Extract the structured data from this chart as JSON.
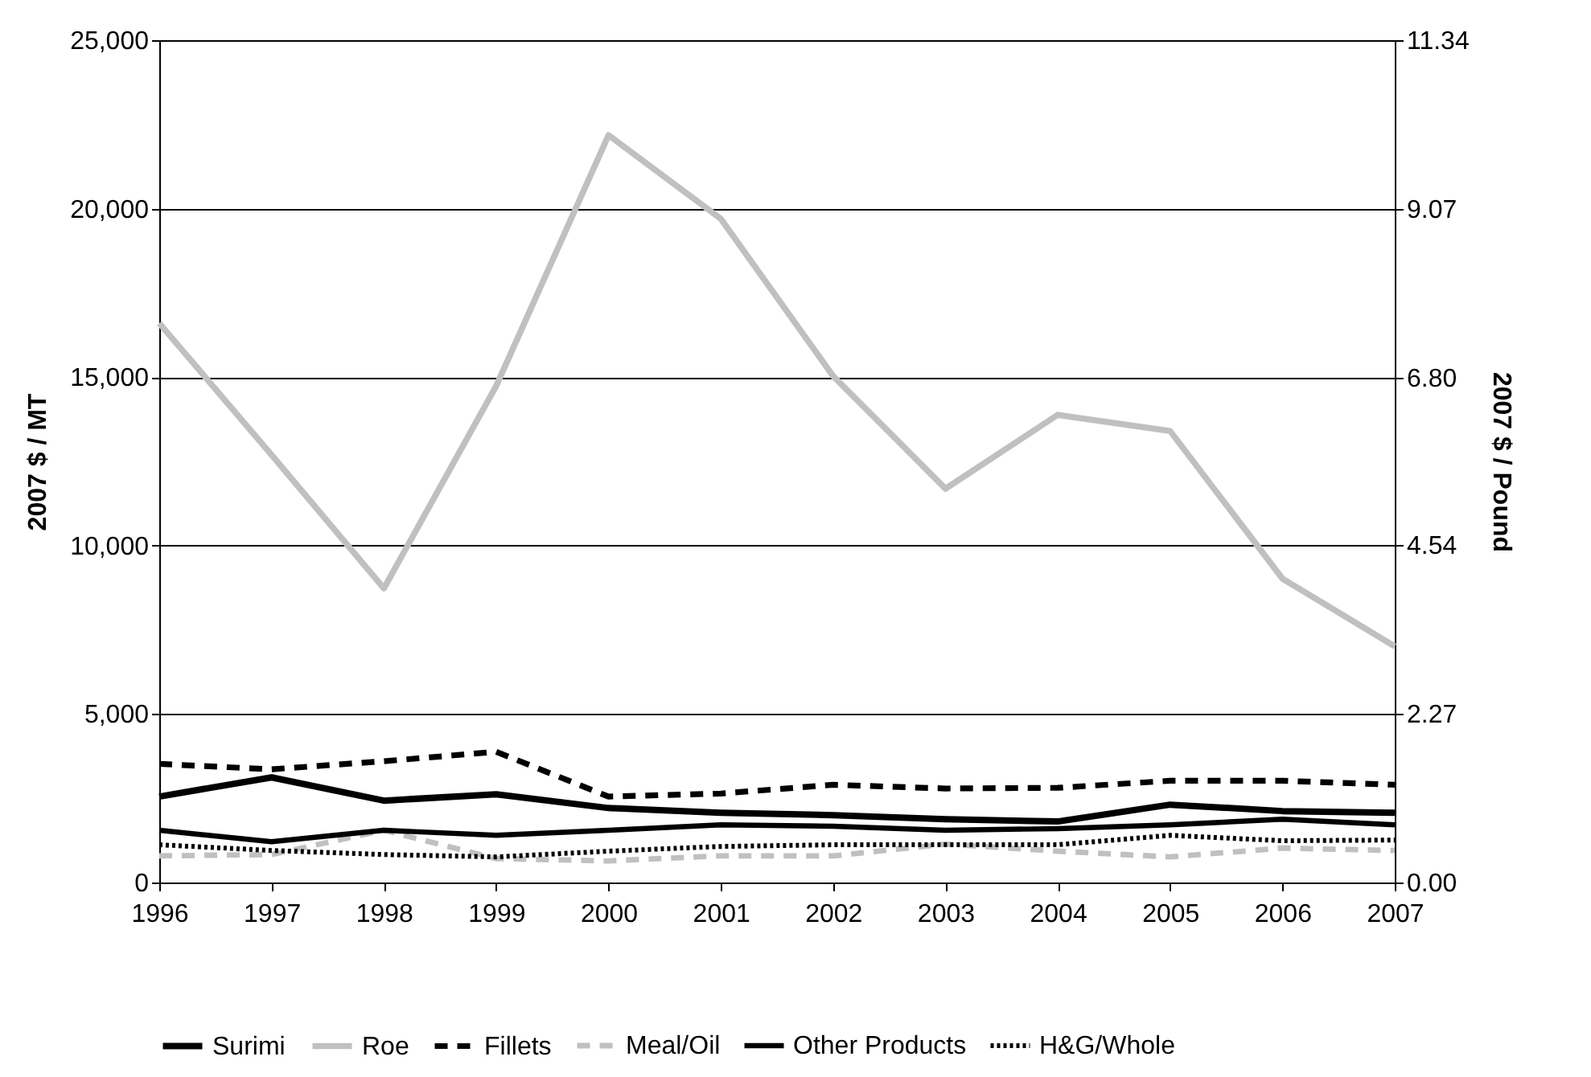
{
  "chart_data": {
    "type": "line",
    "ylabel": "2007 $ / MT",
    "y2label": "2007 $ / Pound",
    "categories": [
      "1996",
      "1997",
      "1998",
      "1999",
      "2000",
      "2001",
      "2002",
      "2003",
      "2004",
      "2005",
      "2006",
      "2007"
    ],
    "series": [
      {
        "name": "Surimi",
        "color": "#000000",
        "line_style": "solid",
        "values": [
          2550,
          3120,
          2430,
          2620,
          2210,
          2070,
          2000,
          1880,
          1810,
          2310,
          2120,
          2070
        ]
      },
      {
        "name": "Roe",
        "color": "#c0c0c0",
        "line_style": "solid",
        "values": [
          16600,
          12690,
          8730,
          14740,
          22180,
          19700,
          15030,
          11690,
          13880,
          13400,
          9020,
          7010
        ]
      },
      {
        "name": "Fillets",
        "color": "#000000",
        "line_style": "dashed",
        "values": [
          3520,
          3360,
          3600,
          3880,
          2550,
          2640,
          2900,
          2790,
          2810,
          3020,
          3020,
          2900
        ]
      },
      {
        "name": "Meal/Oil",
        "color": "#c0c0c0",
        "line_style": "dashed",
        "values": [
          790,
          830,
          1550,
          710,
          640,
          790,
          790,
          1140,
          930,
          760,
          1020,
          950
        ]
      },
      {
        "name": "Other Products",
        "color": "#000000",
        "line_style": "solid",
        "values": [
          1550,
          1210,
          1550,
          1400,
          1550,
          1710,
          1670,
          1550,
          1600,
          1710,
          1880,
          1710
        ]
      },
      {
        "name": "H&G/Whole",
        "color": "#000000",
        "line_style": "dotted",
        "values": [
          1120,
          950,
          830,
          760,
          930,
          1070,
          1120,
          1120,
          1120,
          1400,
          1240,
          1260
        ]
      }
    ],
    "ylim": [
      0,
      25000
    ],
    "yticks": [
      0,
      {
        "value": 5000,
        "label": "5,000"
      },
      {
        "value": 10000,
        "label": "10,000"
      },
      {
        "value": 15000,
        "label": "15,000"
      },
      {
        "value": 20000,
        "label": "20,000"
      },
      {
        "value": 25000,
        "label": "25,000"
      }
    ],
    "y2lim": [
      0,
      11.34
    ],
    "y2ticks": [
      {
        "value": 0,
        "label": "0.00"
      },
      {
        "value": 2.27,
        "label": "2.27"
      },
      {
        "value": 4.54,
        "label": "4.54"
      },
      {
        "value": 6.8,
        "label": "6.80"
      },
      {
        "value": 9.07,
        "label": "9.07"
      },
      {
        "value": 11.34,
        "label": "11.34"
      }
    ],
    "grid": "y",
    "legend": "bottom"
  }
}
